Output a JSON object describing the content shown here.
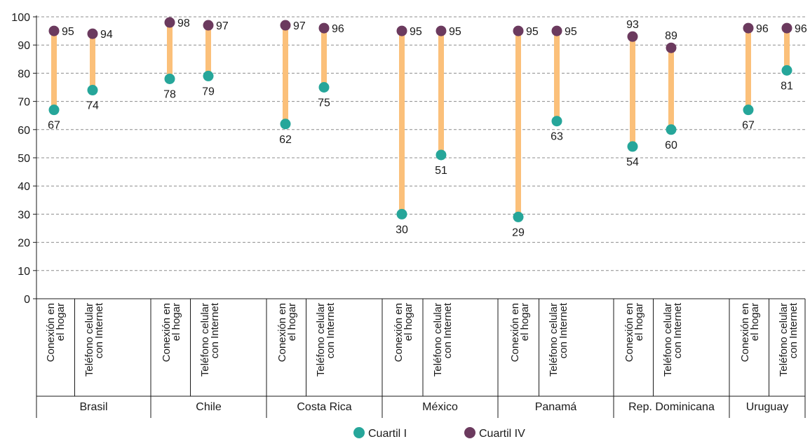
{
  "chart_data": {
    "type": "dumbbell",
    "ylim": [
      0,
      100
    ],
    "yticks": [
      "0",
      "10",
      "20",
      "30",
      "40",
      "50",
      "60",
      "70",
      "80",
      "90",
      "100"
    ],
    "grid": true,
    "legend_position": "bottom-center",
    "categories": [
      {
        "line1": "Conexión en",
        "line2": "el hogar"
      },
      {
        "line1": "Teléfono celular",
        "line2": "con Internet"
      }
    ],
    "groups": [
      {
        "country": "Brasil",
        "items": [
          {
            "q1": 67,
            "q4": 95
          },
          {
            "q1": 74,
            "q4": 94
          }
        ]
      },
      {
        "country": "Chile",
        "items": [
          {
            "q1": 78,
            "q4": 98
          },
          {
            "q1": 79,
            "q4": 97
          }
        ]
      },
      {
        "country": "Costa Rica",
        "items": [
          {
            "q1": 62,
            "q4": 97
          },
          {
            "q1": 75,
            "q4": 96
          }
        ]
      },
      {
        "country": "México",
        "items": [
          {
            "q1": 30,
            "q4": 95
          },
          {
            "q1": 51,
            "q4": 95
          }
        ]
      },
      {
        "country": "Panamá",
        "items": [
          {
            "q1": 29,
            "q4": 95
          },
          {
            "q1": 63,
            "q4": 95
          }
        ]
      },
      {
        "country": "Rep. Dominicana",
        "items": [
          {
            "q1": 54,
            "q4": 93
          },
          {
            "q1": 60,
            "q4": 89
          }
        ]
      },
      {
        "country": "Uruguay",
        "items": [
          {
            "q1": 67,
            "q4": 96
          },
          {
            "q1": 81,
            "q4": 96
          }
        ]
      }
    ],
    "series": [
      {
        "key": "q1",
        "name": "Cuartil I",
        "color": "#26a69a"
      },
      {
        "key": "q4",
        "name": "Cuartil IV",
        "color": "#6b3a5e"
      }
    ],
    "connector_color": "#fbc07a"
  }
}
